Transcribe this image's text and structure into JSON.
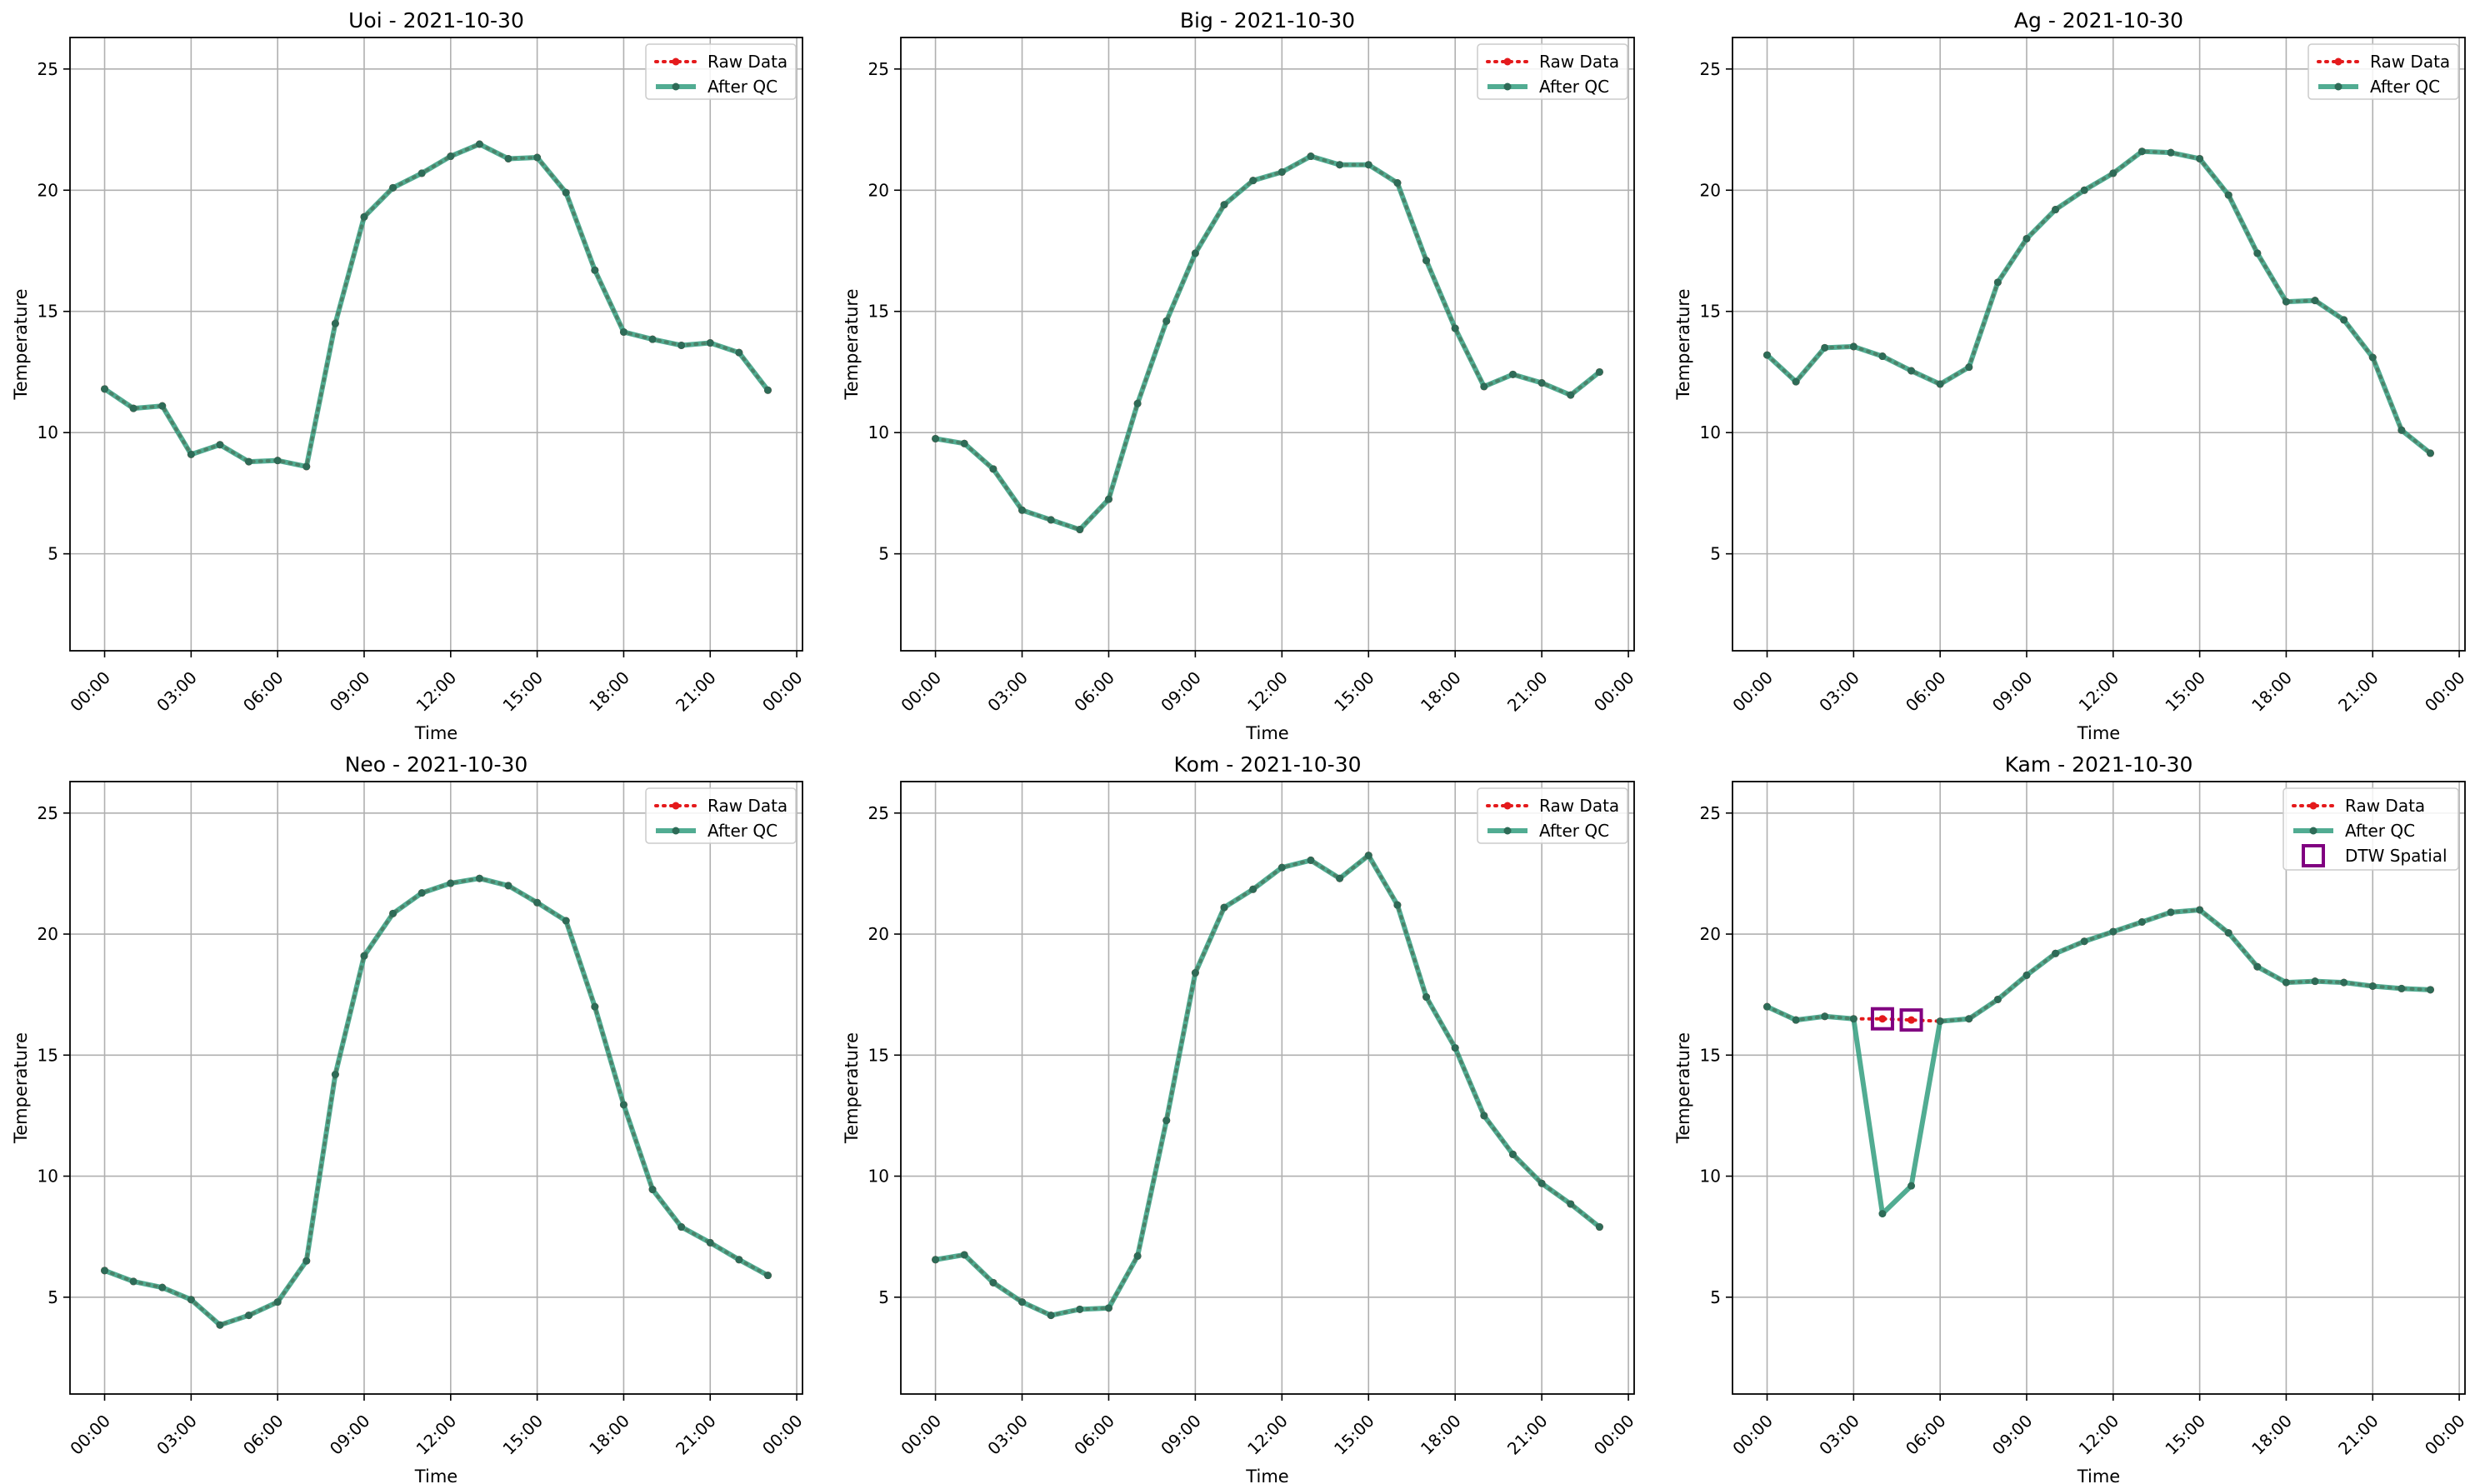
{
  "figure": {
    "xlabel": "Time",
    "ylabel": "Temperature",
    "xticks": [
      "00:00",
      "03:00",
      "06:00",
      "09:00",
      "12:00",
      "15:00",
      "18:00",
      "21:00",
      "00:00"
    ],
    "yticks": [
      5,
      10,
      15,
      20,
      25
    ],
    "legend": {
      "raw": "Raw Data",
      "qc": "After QC",
      "dtw": "DTW Spatial"
    },
    "colors": {
      "raw": "#e41a1c",
      "qc": "#2b9a7a",
      "qc_marker": "#2e6b57",
      "dtw": "#800080",
      "grid": "#b0b0b0",
      "axis": "#000000"
    }
  },
  "chart_data": [
    {
      "type": "line",
      "title": "Uoi - 2021-10-30",
      "xlabel": "Time",
      "ylabel": "Temperature",
      "ylim": [
        1,
        26.3
      ],
      "xlim_hours": [
        -1.2,
        24.2
      ],
      "x_hours": [
        0,
        1,
        2,
        3,
        4,
        5,
        6,
        7,
        8,
        9,
        10,
        11,
        12,
        13,
        14,
        15,
        16,
        17,
        18,
        19,
        20,
        21,
        22,
        23
      ],
      "series": [
        {
          "name": "Raw Data",
          "values": [
            11.8,
            11.0,
            11.1,
            9.1,
            9.5,
            8.8,
            8.85,
            8.6,
            14.5,
            18.9,
            20.1,
            20.7,
            21.4,
            21.9,
            21.3,
            21.35,
            19.9,
            16.7,
            14.15,
            13.85,
            13.6,
            13.7,
            13.3,
            11.75
          ]
        },
        {
          "name": "After QC",
          "values": [
            11.8,
            11.0,
            11.1,
            9.1,
            9.5,
            8.8,
            8.85,
            8.6,
            14.5,
            18.9,
            20.1,
            20.7,
            21.4,
            21.9,
            21.3,
            21.35,
            19.9,
            16.7,
            14.15,
            13.85,
            13.6,
            13.7,
            13.3,
            11.75
          ]
        }
      ],
      "grid": true,
      "legend_position": "upper right"
    },
    {
      "type": "line",
      "title": "Big - 2021-10-30",
      "xlabel": "Time",
      "ylabel": "Temperature",
      "ylim": [
        1,
        26.3
      ],
      "xlim_hours": [
        -1.2,
        24.2
      ],
      "x_hours": [
        0,
        1,
        2,
        3,
        4,
        5,
        6,
        7,
        8,
        9,
        10,
        11,
        12,
        13,
        14,
        15,
        16,
        17,
        18,
        19,
        20,
        21,
        22,
        23
      ],
      "series": [
        {
          "name": "Raw Data",
          "values": [
            9.75,
            9.55,
            8.5,
            6.8,
            6.4,
            6.0,
            7.25,
            11.2,
            14.6,
            17.4,
            19.4,
            20.4,
            20.75,
            21.4,
            21.05,
            21.05,
            20.3,
            17.1,
            14.3,
            11.9,
            12.4,
            12.05,
            11.55,
            12.5
          ]
        },
        {
          "name": "After QC",
          "values": [
            9.75,
            9.55,
            8.5,
            6.8,
            6.4,
            6.0,
            7.25,
            11.2,
            14.6,
            17.4,
            19.4,
            20.4,
            20.75,
            21.4,
            21.05,
            21.05,
            20.3,
            17.1,
            14.3,
            11.9,
            12.4,
            12.05,
            11.55,
            12.5
          ]
        }
      ],
      "grid": true,
      "legend_position": "upper right"
    },
    {
      "type": "line",
      "title": "Ag - 2021-10-30",
      "xlabel": "Time",
      "ylabel": "Temperature",
      "ylim": [
        1,
        26.3
      ],
      "xlim_hours": [
        -1.2,
        24.2
      ],
      "x_hours": [
        0,
        1,
        2,
        3,
        4,
        5,
        6,
        7,
        8,
        9,
        10,
        11,
        12,
        13,
        14,
        15,
        16,
        17,
        18,
        19,
        20,
        21,
        22,
        23
      ],
      "series": [
        {
          "name": "Raw Data",
          "values": [
            13.2,
            12.1,
            13.5,
            13.55,
            13.15,
            12.55,
            12.0,
            12.7,
            16.2,
            18.0,
            19.2,
            20.0,
            20.7,
            21.6,
            21.55,
            21.3,
            19.8,
            17.4,
            15.4,
            15.45,
            14.65,
            13.1,
            10.1,
            9.15
          ]
        },
        {
          "name": "After QC",
          "values": [
            13.2,
            12.1,
            13.5,
            13.55,
            13.15,
            12.55,
            12.0,
            12.7,
            16.2,
            18.0,
            19.2,
            20.0,
            20.7,
            21.6,
            21.55,
            21.3,
            19.8,
            17.4,
            15.4,
            15.45,
            14.65,
            13.1,
            10.1,
            9.15
          ]
        }
      ],
      "grid": true,
      "legend_position": "upper right"
    },
    {
      "type": "line",
      "title": "Neo - 2021-10-30",
      "xlabel": "Time",
      "ylabel": "Temperature",
      "ylim": [
        1,
        26.3
      ],
      "xlim_hours": [
        -1.2,
        24.2
      ],
      "x_hours": [
        0,
        1,
        2,
        3,
        4,
        5,
        6,
        7,
        8,
        9,
        10,
        11,
        12,
        13,
        14,
        15,
        16,
        17,
        18,
        19,
        20,
        21,
        22,
        23
      ],
      "series": [
        {
          "name": "Raw Data",
          "values": [
            6.1,
            5.65,
            5.4,
            4.9,
            3.85,
            4.25,
            4.8,
            6.5,
            14.2,
            19.1,
            20.85,
            21.7,
            22.1,
            22.3,
            22.0,
            21.3,
            20.55,
            17.0,
            12.95,
            9.45,
            7.9,
            7.25,
            6.55,
            5.9
          ]
        },
        {
          "name": "After QC",
          "values": [
            6.1,
            5.65,
            5.4,
            4.9,
            3.85,
            4.25,
            4.8,
            6.5,
            14.2,
            19.1,
            20.85,
            21.7,
            22.1,
            22.3,
            22.0,
            21.3,
            20.55,
            17.0,
            12.95,
            9.45,
            7.9,
            7.25,
            6.55,
            5.9
          ]
        }
      ],
      "grid": true,
      "legend_position": "upper right"
    },
    {
      "type": "line",
      "title": "Kom - 2021-10-30",
      "xlabel": "Time",
      "ylabel": "Temperature",
      "ylim": [
        1,
        26.3
      ],
      "xlim_hours": [
        -1.2,
        24.2
      ],
      "x_hours": [
        0,
        1,
        2,
        3,
        4,
        5,
        6,
        7,
        8,
        9,
        10,
        11,
        12,
        13,
        14,
        15,
        16,
        17,
        18,
        19,
        20,
        21,
        22,
        23
      ],
      "series": [
        {
          "name": "Raw Data",
          "values": [
            6.55,
            6.75,
            5.6,
            4.8,
            4.25,
            4.5,
            4.55,
            6.7,
            12.3,
            18.4,
            21.1,
            21.85,
            22.75,
            23.05,
            22.3,
            23.25,
            21.2,
            17.4,
            15.3,
            12.5,
            10.9,
            9.7,
            8.85,
            7.9
          ]
        },
        {
          "name": "After QC",
          "values": [
            6.55,
            6.75,
            5.6,
            4.8,
            4.25,
            4.5,
            4.55,
            6.7,
            12.3,
            18.4,
            21.1,
            21.85,
            22.75,
            23.05,
            22.3,
            23.25,
            21.2,
            17.4,
            15.3,
            12.5,
            10.9,
            9.7,
            8.85,
            7.9
          ]
        }
      ],
      "grid": true,
      "legend_position": "upper right"
    },
    {
      "type": "line",
      "title": "Kam - 2021-10-30",
      "xlabel": "Time",
      "ylabel": "Temperature",
      "ylim": [
        1,
        26.3
      ],
      "xlim_hours": [
        -1.2,
        24.2
      ],
      "x_hours": [
        0,
        1,
        2,
        3,
        4,
        5,
        6,
        7,
        8,
        9,
        10,
        11,
        12,
        13,
        14,
        15,
        16,
        17,
        18,
        19,
        20,
        21,
        22,
        23
      ],
      "series": [
        {
          "name": "Raw Data",
          "values": [
            17.0,
            16.45,
            16.6,
            16.5,
            16.5,
            16.45,
            16.4,
            16.5,
            17.3,
            18.3,
            19.2,
            19.7,
            20.1,
            20.5,
            20.9,
            21.0,
            20.05,
            18.65,
            18.0,
            18.05,
            18.0,
            17.85,
            17.75,
            17.7
          ]
        },
        {
          "name": "After QC",
          "values": [
            17.0,
            16.45,
            16.6,
            16.5,
            8.45,
            9.6,
            16.4,
            16.5,
            17.3,
            18.3,
            19.2,
            19.7,
            20.1,
            20.5,
            20.9,
            21.0,
            20.05,
            18.65,
            18.0,
            18.05,
            18.0,
            17.85,
            17.75,
            17.7
          ]
        }
      ],
      "dtw_flags": {
        "name": "DTW Spatial",
        "x_hours": [
          4,
          5
        ],
        "values": [
          16.5,
          16.45
        ]
      },
      "grid": true,
      "legend_position": "upper right"
    }
  ]
}
